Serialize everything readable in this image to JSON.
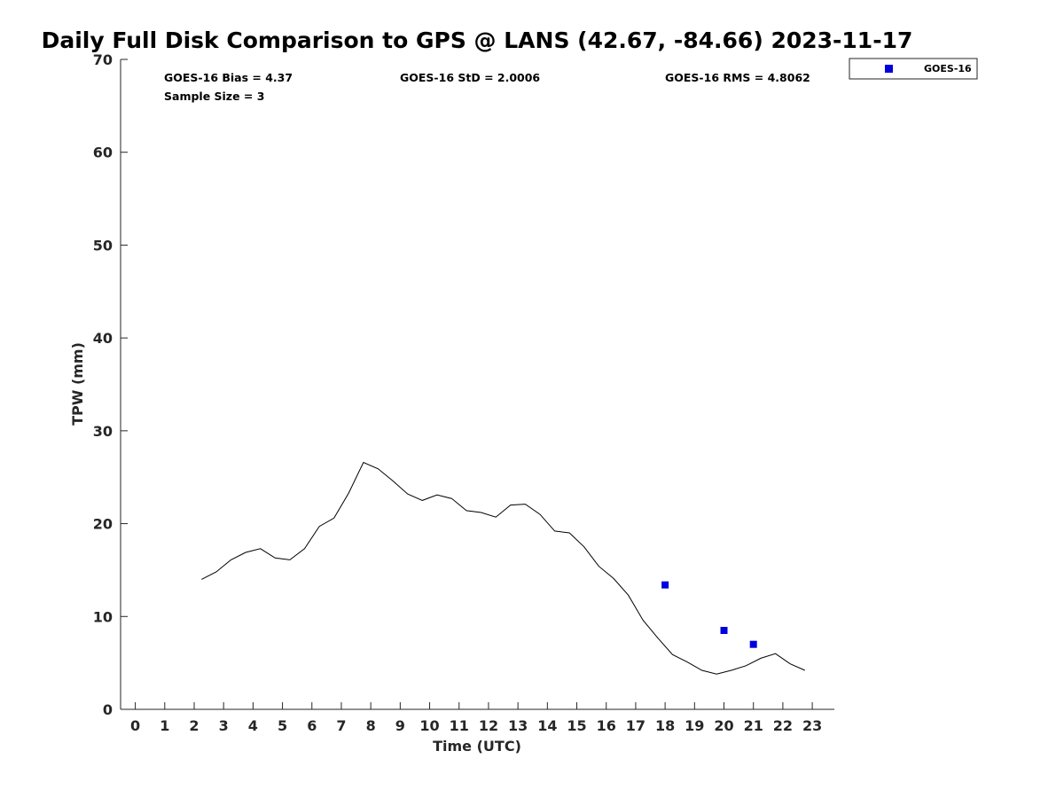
{
  "chart_data": {
    "type": "line",
    "title": "Daily Full Disk Comparison to GPS @ LANS (42.67, -84.66) 2023-11-17",
    "xlabel": "Time (UTC)",
    "ylabel": "TPW (mm)",
    "xlim": [
      -0.5,
      23.75
    ],
    "ylim": [
      0,
      70
    ],
    "x_ticks": [
      0,
      1,
      2,
      3,
      4,
      5,
      6,
      7,
      8,
      9,
      10,
      11,
      12,
      13,
      14,
      15,
      16,
      17,
      18,
      19,
      20,
      21,
      22,
      23
    ],
    "y_ticks": [
      0,
      10,
      20,
      30,
      40,
      50,
      60,
      70
    ],
    "grid": false,
    "legend_position": "top-right, outside plot",
    "series": [
      {
        "type": "line",
        "color": "#000000",
        "points": [
          [
            2.25,
            14.0
          ],
          [
            2.75,
            14.8
          ],
          [
            3.25,
            16.1
          ],
          [
            3.75,
            16.9
          ],
          [
            4.25,
            17.3
          ],
          [
            4.75,
            16.3
          ],
          [
            5.25,
            16.1
          ],
          [
            5.75,
            17.3
          ],
          [
            6.25,
            19.7
          ],
          [
            6.75,
            20.6
          ],
          [
            7.25,
            23.3
          ],
          [
            7.75,
            26.6
          ],
          [
            8.25,
            25.9
          ],
          [
            8.75,
            24.6
          ],
          [
            9.25,
            23.2
          ],
          [
            9.75,
            22.5
          ],
          [
            10.25,
            23.1
          ],
          [
            10.75,
            22.7
          ],
          [
            11.25,
            21.4
          ],
          [
            11.75,
            21.2
          ],
          [
            12.25,
            20.7
          ],
          [
            12.75,
            22.0
          ],
          [
            13.25,
            22.1
          ],
          [
            13.75,
            21.0
          ],
          [
            14.25,
            19.2
          ],
          [
            14.75,
            19.0
          ],
          [
            15.25,
            17.5
          ],
          [
            15.75,
            15.4
          ],
          [
            16.25,
            14.1
          ],
          [
            16.75,
            12.3
          ],
          [
            17.25,
            9.6
          ],
          [
            17.75,
            7.7
          ],
          [
            18.25,
            5.9
          ],
          [
            18.75,
            5.1
          ],
          [
            19.25,
            4.2
          ],
          [
            19.75,
            3.8
          ],
          [
            20.25,
            4.2
          ],
          [
            20.75,
            4.7
          ],
          [
            21.25,
            5.5
          ],
          [
            21.75,
            6.0
          ],
          [
            22.25,
            4.9
          ],
          [
            22.75,
            4.2
          ]
        ]
      },
      {
        "type": "scatter",
        "name": "GOES-16",
        "color": "#0000dd",
        "points": [
          [
            18.0,
            13.4
          ],
          [
            20.0,
            8.5
          ],
          [
            21.0,
            7.0
          ]
        ]
      }
    ],
    "stats": {
      "bias": "GOES-16 Bias = 4.37",
      "std": "GOES-16 StD = 2.0006",
      "rms": "GOES-16 RMS = 4.8062",
      "sample": "Sample Size = 3"
    },
    "legend": [
      {
        "label": "GOES-16",
        "color": "#0000dd",
        "marker": "square"
      }
    ]
  }
}
